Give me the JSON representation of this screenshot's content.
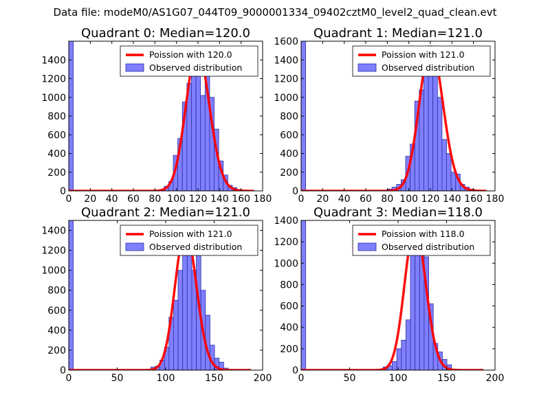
{
  "figure": {
    "suptitle": "Data file: modeM0/AS1G07_044T09_9000001334_09402cztM0_level2_quad_clean.evt"
  },
  "colors": {
    "bar_fill": "#7f7fff",
    "bar_edge": "#2f2f9f",
    "curve": "#ff0000",
    "axis": "#000000"
  },
  "chart_data": [
    {
      "type": "bar",
      "title": "Quadrant 0: Median=120.0",
      "xlim": [
        0,
        180
      ],
      "ylim": [
        0,
        1600
      ],
      "xticks": [
        0,
        20,
        40,
        60,
        80,
        100,
        120,
        140,
        160,
        180
      ],
      "yticks": [
        0,
        200,
        400,
        600,
        800,
        1000,
        1200,
        1400
      ],
      "bin_width": 4.22,
      "hist_x": [
        0,
        75.94,
        80.16,
        84.38,
        88.6,
        92.82,
        97.04,
        101.26,
        105.48,
        109.7,
        113.92,
        118.14,
        122.36,
        126.58,
        130.8,
        135.02,
        139.24,
        143.46,
        147.68,
        151.9,
        156.12,
        160.34,
        164.56
      ],
      "hist_y": [
        1600,
        2,
        5,
        15,
        50,
        100,
        380,
        560,
        950,
        1150,
        1280,
        1380,
        1020,
        1360,
        1000,
        660,
        320,
        170,
        60,
        35,
        15,
        5,
        2
      ],
      "curve_label": "Poission with 120.0",
      "curve_mean": 120.0,
      "curve_scale": 1500,
      "curve_range": [
        0,
        172
      ],
      "legend": [
        "Poission with 120.0",
        "Observed distribution"
      ],
      "legend_loc": "top-right"
    },
    {
      "type": "bar",
      "title": "Quadrant 1: Median=121.0",
      "xlim": [
        0,
        180
      ],
      "ylim": [
        0,
        1600
      ],
      "xticks": [
        0,
        20,
        40,
        60,
        80,
        100,
        120,
        140,
        160,
        180
      ],
      "yticks": [
        0,
        200,
        400,
        600,
        800,
        1000,
        1200,
        1400,
        1600
      ],
      "bin_width": 4.22,
      "hist_x": [
        0,
        75.94,
        80.16,
        84.38,
        88.6,
        92.82,
        97.04,
        101.26,
        105.48,
        109.7,
        113.92,
        118.14,
        122.36,
        126.58,
        130.8,
        135.02,
        139.24,
        143.46,
        147.68,
        151.9,
        156.12,
        160.34,
        164.56
      ],
      "hist_y": [
        1600,
        2,
        20,
        40,
        70,
        120,
        370,
        500,
        960,
        1080,
        1420,
        1550,
        1380,
        1000,
        550,
        400,
        200,
        180,
        70,
        40,
        20,
        10,
        2
      ],
      "curve_label": "Poission with 121.0",
      "curve_mean": 121.0,
      "curve_scale": 1540,
      "curve_range": [
        0,
        172
      ],
      "legend": [
        "Poission with 121.0",
        "Observed distribution"
      ],
      "legend_loc": "top-right"
    },
    {
      "type": "bar",
      "title": "Quadrant 2: Median=121.0",
      "xlim": [
        0,
        200
      ],
      "ylim": [
        0,
        1500
      ],
      "xticks": [
        0,
        50,
        100,
        150,
        200
      ],
      "yticks": [
        0,
        200,
        400,
        600,
        800,
        1000,
        1200,
        1400
      ],
      "bin_width": 4.7,
      "hist_x": [
        0,
        84.6,
        89.3,
        94,
        98.7,
        103.4,
        108.1,
        112.8,
        117.5,
        122.2,
        126.9,
        131.6,
        136.3,
        141,
        145.7,
        150.4,
        155.1,
        159.8,
        164.5
      ],
      "hist_y": [
        1500,
        30,
        40,
        100,
        230,
        530,
        700,
        1000,
        1380,
        1280,
        1000,
        1340,
        800,
        550,
        250,
        120,
        80,
        20,
        5
      ],
      "curve_label": "Poission with 121.0",
      "curve_mean": 121.0,
      "curve_scale": 1400,
      "curve_range": [
        0,
        188
      ],
      "legend": [
        "Poission with 121.0",
        "Observed distribution"
      ],
      "legend_loc": "top-right"
    },
    {
      "type": "bar",
      "title": "Quadrant 3: Median=118.0",
      "xlim": [
        0,
        200
      ],
      "ylim": [
        0,
        1400
      ],
      "xticks": [
        0,
        50,
        100,
        150,
        200
      ],
      "yticks": [
        0,
        200,
        400,
        600,
        800,
        1000,
        1200,
        1400
      ],
      "bin_width": 4.7,
      "hist_x": [
        0,
        80.0,
        84.6,
        89.3,
        94,
        98.7,
        103.4,
        108.1,
        112.8,
        117.5,
        122.2,
        126.9,
        131.6,
        136.3,
        141,
        145.7,
        150.4,
        155.1,
        159.8
      ],
      "hist_y": [
        1400,
        10,
        30,
        40,
        80,
        200,
        280,
        470,
        1150,
        1320,
        1250,
        1060,
        620,
        250,
        170,
        100,
        50,
        10,
        5
      ],
      "curve_label": "Poission with 118.0",
      "curve_mean": 118.0,
      "curve_scale": 1340,
      "curve_range": [
        0,
        188
      ],
      "legend": [
        "Poission with 118.0",
        "Observed distribution"
      ],
      "legend_loc": "top-right"
    }
  ]
}
